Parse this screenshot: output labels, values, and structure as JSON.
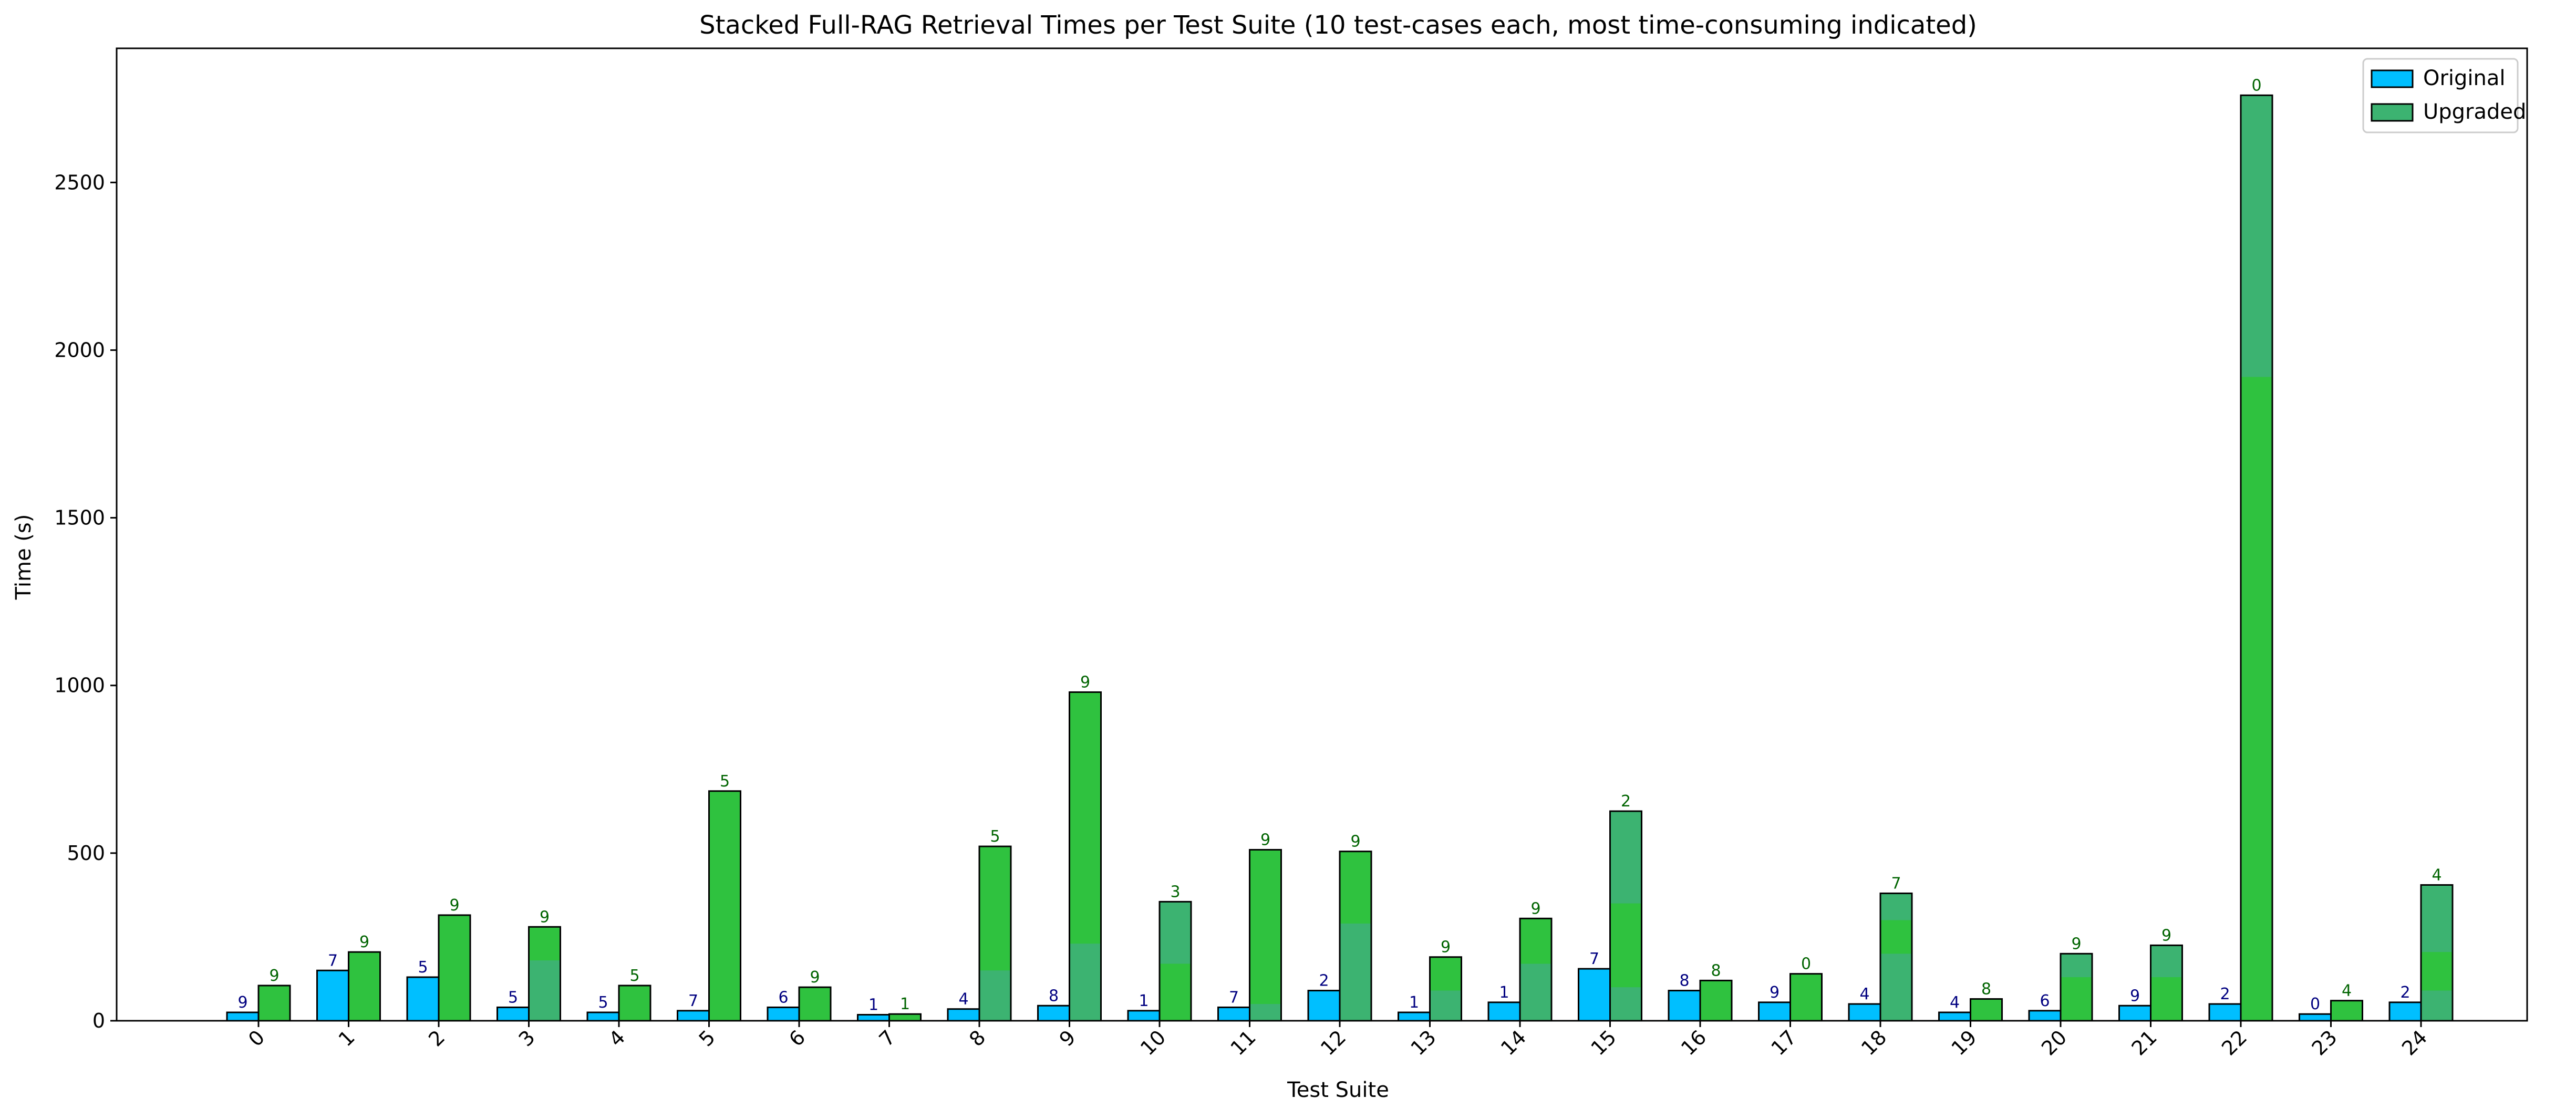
{
  "chart_data": {
    "type": "bar",
    "title": "Stacked Full-RAG Retrieval Times per Test Suite (10 test-cases each, most time-consuming indicated)",
    "xlabel": "Test Suite",
    "ylabel": "Time (s)",
    "ylim": [
      0,
      2900
    ],
    "yticks": [
      0,
      500,
      1000,
      1500,
      2000,
      2500
    ],
    "categories": [
      "0",
      "1",
      "2",
      "3",
      "4",
      "5",
      "6",
      "7",
      "8",
      "9",
      "10",
      "11",
      "12",
      "13",
      "14",
      "15",
      "16",
      "17",
      "18",
      "19",
      "20",
      "21",
      "22",
      "23",
      "24"
    ],
    "grid": false,
    "legend_position": "top-right",
    "series": [
      {
        "name": "Original",
        "color": "#00bfff",
        "label_color": "#000080",
        "values": [
          25,
          150,
          130,
          40,
          25,
          30,
          40,
          18,
          35,
          45,
          30,
          40,
          90,
          25,
          55,
          155,
          90,
          55,
          50,
          25,
          30,
          45,
          50,
          20,
          55
        ],
        "top_labels": [
          "9",
          "7",
          "5",
          "5",
          "5",
          "7",
          "6",
          "1",
          "4",
          "8",
          "1",
          "7",
          "2",
          "1",
          "1",
          "7",
          "8",
          "9",
          "4",
          "4",
          "6",
          "9",
          "2",
          "0",
          "2"
        ]
      },
      {
        "name": "Upgraded",
        "color": "#3cb371",
        "label_color": "#006400",
        "values": [
          105,
          205,
          315,
          280,
          105,
          685,
          100,
          20,
          520,
          980,
          355,
          510,
          505,
          190,
          305,
          625,
          120,
          140,
          380,
          65,
          200,
          225,
          2760,
          60,
          405
        ],
        "highlight_segments": [
          [
            0,
            105
          ],
          [
            0,
            205
          ],
          [
            0,
            315
          ],
          [
            180,
            280
          ],
          [
            0,
            105
          ],
          [
            0,
            685
          ],
          [
            0,
            100
          ],
          [
            0,
            20
          ],
          [
            150,
            520
          ],
          [
            230,
            980
          ],
          [
            0,
            170
          ],
          [
            50,
            510
          ],
          [
            290,
            505
          ],
          [
            90,
            190
          ],
          [
            170,
            305
          ],
          [
            100,
            350
          ],
          [
            0,
            120
          ],
          [
            0,
            140
          ],
          [
            200,
            300
          ],
          [
            0,
            65
          ],
          [
            0,
            130
          ],
          [
            0,
            130
          ],
          [
            0,
            1920
          ],
          [
            0,
            60
          ],
          [
            90,
            205
          ]
        ],
        "highlight_color": "#2fc23f",
        "top_labels": [
          "9",
          "9",
          "9",
          "9",
          "5",
          "5",
          "9",
          "1",
          "5",
          "9",
          "3",
          "9",
          "9",
          "9",
          "9",
          "2",
          "8",
          "0",
          "7",
          "8",
          "9",
          "9",
          "0",
          "4",
          "4"
        ]
      }
    ]
  }
}
